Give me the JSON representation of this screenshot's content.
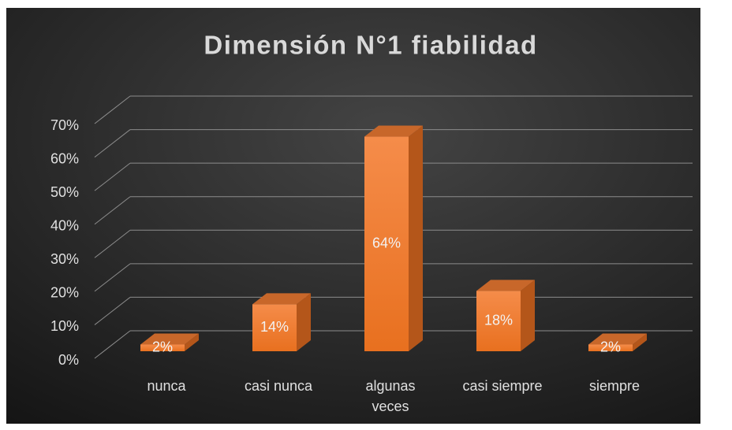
{
  "chart_data": {
    "type": "bar3d",
    "title": "Dimensión N°1 fiabilidad",
    "categories": [
      "nunca",
      "casi nunca",
      "algunas veces",
      "casi siempre",
      "siempre"
    ],
    "values": [
      2,
      14,
      64,
      18,
      2
    ],
    "value_labels": [
      "2%",
      "14%",
      "64%",
      "18%",
      "2%"
    ],
    "color": "#ed7d31",
    "ylim": [
      0,
      70
    ],
    "yticks": [
      {
        "value": 0,
        "label": "0%"
      },
      {
        "value": 10,
        "label": "10%"
      },
      {
        "value": 20,
        "label": "20%"
      },
      {
        "value": 30,
        "label": "30%"
      },
      {
        "value": 40,
        "label": "40%"
      },
      {
        "value": 50,
        "label": "50%"
      },
      {
        "value": 60,
        "label": "60%"
      },
      {
        "value": 70,
        "label": "70%"
      }
    ],
    "grid": true
  }
}
